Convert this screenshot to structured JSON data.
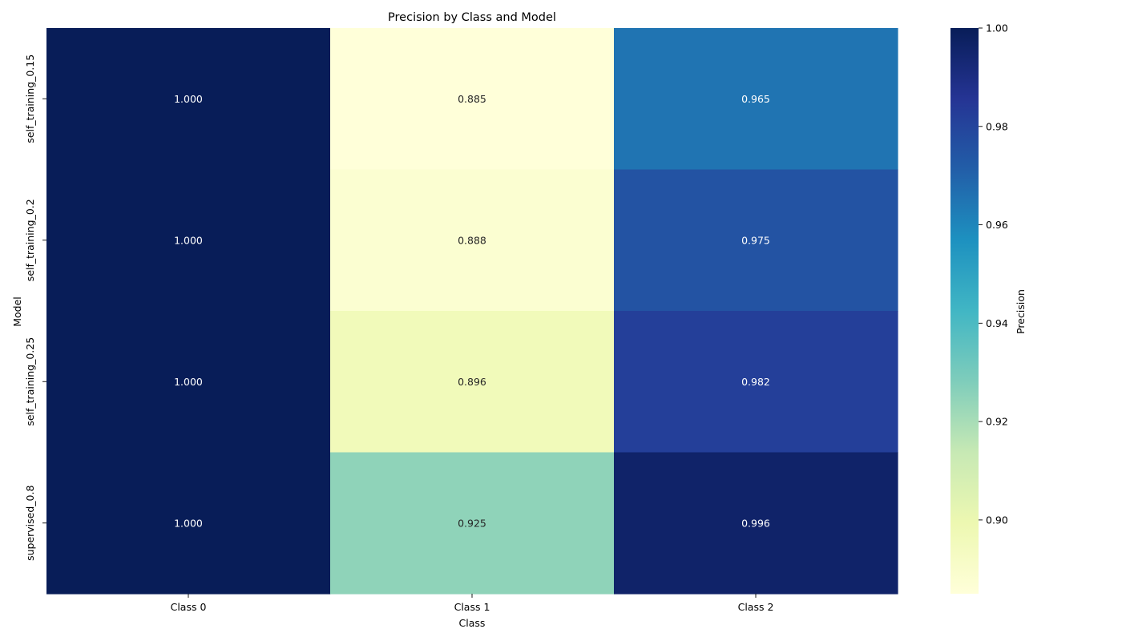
{
  "chart_data": {
    "type": "heatmap",
    "title": "Precision by Class and Model",
    "xlabel": "Class",
    "ylabel": "Model",
    "x_categories": [
      "Class 0",
      "Class 1",
      "Class 2"
    ],
    "y_categories": [
      "self_training_0.15",
      "self_training_0.2",
      "self_training_0.25",
      "supervised_0.8"
    ],
    "values": [
      [
        1.0,
        0.885,
        0.965
      ],
      [
        1.0,
        0.888,
        0.975
      ],
      [
        1.0,
        0.896,
        0.982
      ],
      [
        1.0,
        0.925,
        0.996
      ]
    ],
    "value_labels": [
      [
        "1.000",
        "0.885",
        "0.965"
      ],
      [
        "1.000",
        "0.888",
        "0.975"
      ],
      [
        "1.000",
        "0.896",
        "0.982"
      ],
      [
        "1.000",
        "0.925",
        "0.996"
      ]
    ],
    "colormap": "YlGnBu",
    "colorbar": {
      "label": "Precision",
      "vmin": 0.885,
      "vmax": 1.0,
      "ticks": [
        0.9,
        0.92,
        0.94,
        0.96,
        0.98,
        1.0
      ],
      "tick_labels": [
        "0.90",
        "0.92",
        "0.94",
        "0.96",
        "0.98",
        "1.00"
      ]
    },
    "grid": false,
    "legend": "colorbar-right"
  }
}
